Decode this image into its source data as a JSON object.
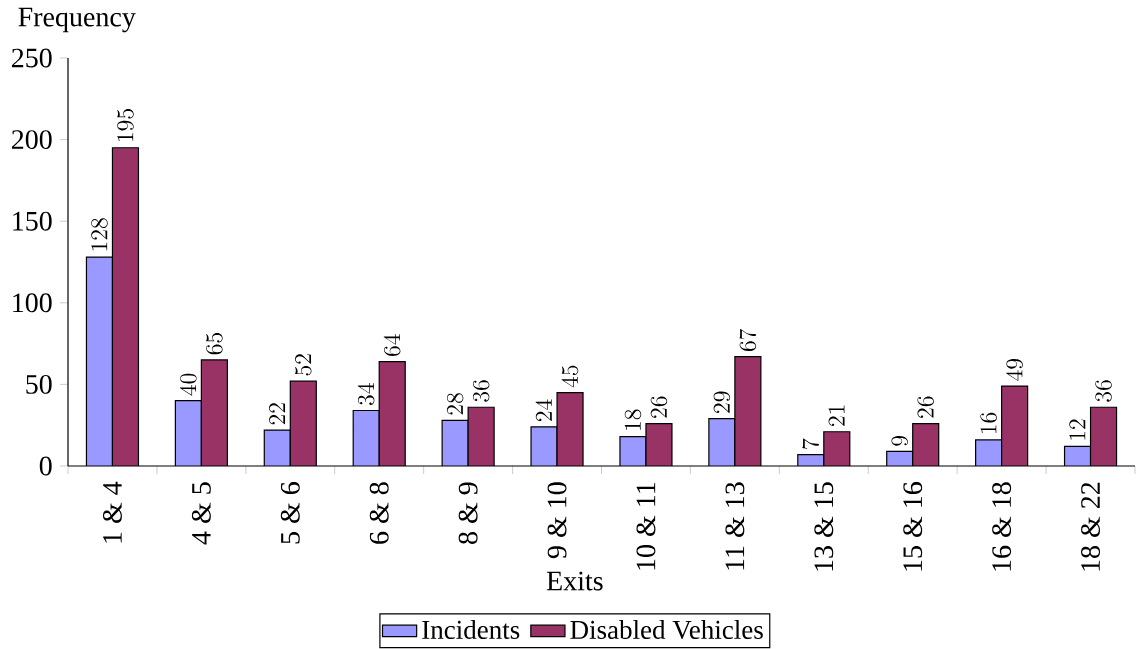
{
  "chart_data": {
    "type": "bar",
    "xlabel": "Exits",
    "ylabel": "Frequency",
    "categories": [
      "1 & 4",
      "4 & 5",
      "5 & 6",
      "6 & 8",
      "8 & 9",
      "9 & 10",
      "10 & 11",
      "11 & 13",
      "13 & 15",
      "15 & 16",
      "16 & 18",
      "18 & 22"
    ],
    "series": [
      {
        "name": "Incidents",
        "color": "#9999ff",
        "values": [
          128,
          40,
          22,
          34,
          28,
          24,
          18,
          29,
          7,
          9,
          16,
          12
        ]
      },
      {
        "name": "Disabled Vehicles",
        "color": "#993366",
        "values": [
          195,
          65,
          52,
          64,
          36,
          45,
          26,
          67,
          21,
          26,
          49,
          36
        ]
      }
    ],
    "ylim": [
      0,
      250
    ],
    "yticks": [
      0,
      50,
      100,
      150,
      200,
      250
    ],
    "data_labels": true,
    "legend": "bottom",
    "grid": false
  }
}
